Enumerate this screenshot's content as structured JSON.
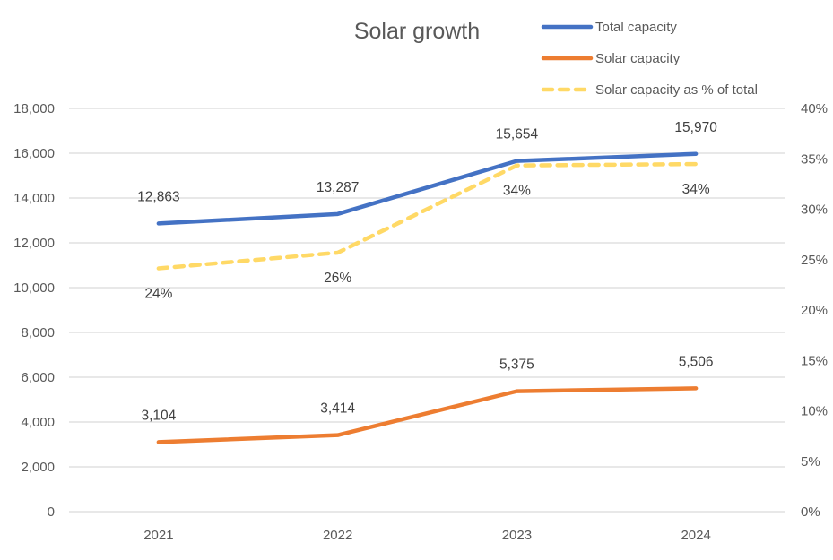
{
  "chart_data": {
    "type": "line",
    "title": "Solar growth",
    "xlabel": "",
    "ylabel": "",
    "y2label": "",
    "categories": [
      "2021",
      "2022",
      "2023",
      "2024"
    ],
    "ylim": [
      0,
      18000
    ],
    "y_ticks": [
      0,
      2000,
      4000,
      6000,
      8000,
      10000,
      12000,
      14000,
      16000,
      18000
    ],
    "y_tick_labels": [
      "0",
      "2,000",
      "4,000",
      "6,000",
      "8,000",
      "10,000",
      "12,000",
      "14,000",
      "16,000",
      "18,000"
    ],
    "y2lim": [
      0,
      0.4
    ],
    "y2_ticks": [
      0,
      0.05,
      0.1,
      0.15,
      0.2,
      0.25,
      0.3,
      0.35,
      0.4
    ],
    "y2_tick_labels": [
      "0%",
      "5%",
      "10%",
      "15%",
      "20%",
      "25%",
      "30%",
      "35%",
      "40%"
    ],
    "grid": true,
    "legend_position": "top-right",
    "series": [
      {
        "name": "Total capacity",
        "axis": "left",
        "color": "#4472C4",
        "style": "solid",
        "values": [
          12863,
          13287,
          15654,
          15970
        ],
        "labels": [
          "12,863",
          "13,287",
          "15,654",
          "15,970"
        ],
        "label_position": "above"
      },
      {
        "name": "Solar capacity",
        "axis": "left",
        "color": "#ED7D31",
        "style": "solid",
        "values": [
          3104,
          3414,
          5375,
          5506
        ],
        "labels": [
          "3,104",
          "3,414",
          "5,375",
          "5,506"
        ],
        "label_position": "above"
      },
      {
        "name": "Solar capacity as % of total",
        "axis": "right",
        "color": "#FFD966",
        "style": "dashed",
        "values": [
          0.2413,
          0.2569,
          0.3434,
          0.3448
        ],
        "labels": [
          "24%",
          "26%",
          "34%",
          "34%"
        ],
        "label_position": "below"
      }
    ]
  }
}
